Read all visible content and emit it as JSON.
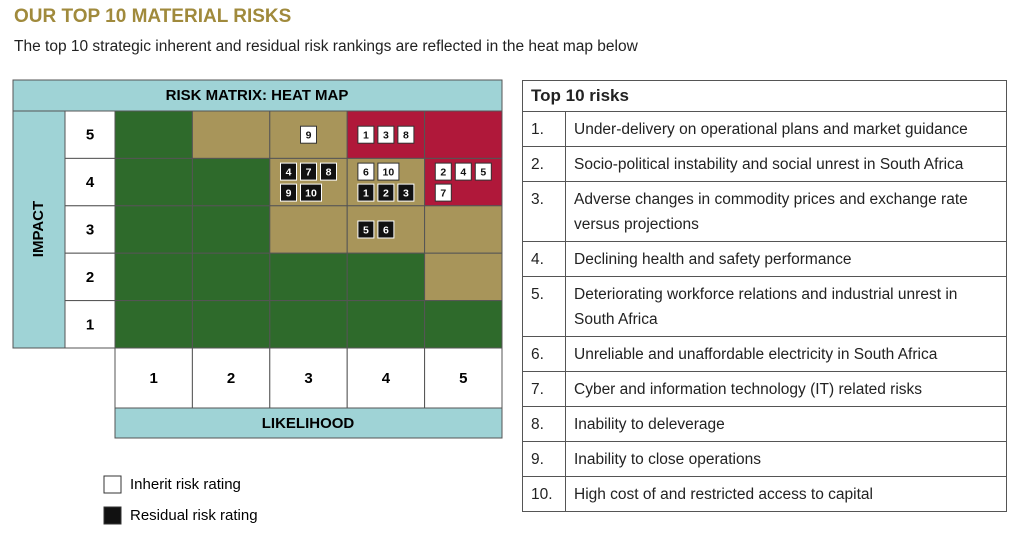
{
  "header": {
    "title": "OUR TOP 10 MATERIAL RISKS",
    "subtitle": "The top 10 strategic inherent and residual risk rankings are reflected in the heat map below"
  },
  "heat_map": {
    "title": "RISK MATRIX: HEAT MAP",
    "y_label": "IMPACT",
    "x_label": "LIKELIHOOD",
    "likelihood": [
      "1",
      "2",
      "3",
      "4",
      "5"
    ],
    "rows": [
      {
        "impact": "5",
        "cells": [
          {
            "color": "#2e6a2b",
            "inherent": [],
            "residual": []
          },
          {
            "color": "#a8955a",
            "inherent": [],
            "residual": []
          },
          {
            "color": "#a8955a",
            "inherent": [
              "9"
            ],
            "residual": []
          },
          {
            "color": "#b0183a",
            "inherent": [
              "1",
              "3",
              "8"
            ],
            "residual": []
          },
          {
            "color": "#b0183a",
            "inherent": [],
            "residual": []
          }
        ]
      },
      {
        "impact": "4",
        "cells": [
          {
            "color": "#2e6a2b",
            "inherent": [],
            "residual": []
          },
          {
            "color": "#2e6a2b",
            "inherent": [],
            "residual": []
          },
          {
            "color": "#a8955a",
            "inherent": [],
            "residual": [
              "4",
              "7",
              "8",
              "9",
              "10"
            ]
          },
          {
            "color": "#a8955a",
            "inherent": [
              "6",
              "10"
            ],
            "residual": [
              "1",
              "2",
              "3"
            ]
          },
          {
            "color": "#b0183a",
            "inherent": [
              "2",
              "4",
              "5",
              "7"
            ],
            "residual": []
          }
        ]
      },
      {
        "impact": "3",
        "cells": [
          {
            "color": "#2e6a2b",
            "inherent": [],
            "residual": []
          },
          {
            "color": "#2e6a2b",
            "inherent": [],
            "residual": []
          },
          {
            "color": "#a8955a",
            "inherent": [],
            "residual": []
          },
          {
            "color": "#a8955a",
            "inherent": [],
            "residual": [
              "5",
              "6"
            ]
          },
          {
            "color": "#a8955a",
            "inherent": [],
            "residual": []
          }
        ]
      },
      {
        "impact": "2",
        "cells": [
          {
            "color": "#2e6a2b",
            "inherent": [],
            "residual": []
          },
          {
            "color": "#2e6a2b",
            "inherent": [],
            "residual": []
          },
          {
            "color": "#2e6a2b",
            "inherent": [],
            "residual": []
          },
          {
            "color": "#2e6a2b",
            "inherent": [],
            "residual": []
          },
          {
            "color": "#a8955a",
            "inherent": [],
            "residual": []
          }
        ]
      },
      {
        "impact": "1",
        "cells": [
          {
            "color": "#2e6a2b",
            "inherent": [],
            "residual": []
          },
          {
            "color": "#2e6a2b",
            "inherent": [],
            "residual": []
          },
          {
            "color": "#2e6a2b",
            "inherent": [],
            "residual": []
          },
          {
            "color": "#2e6a2b",
            "inherent": [],
            "residual": []
          },
          {
            "color": "#2e6a2b",
            "inherent": [],
            "residual": []
          }
        ]
      }
    ],
    "legend": {
      "inherent": "Inherit risk rating",
      "residual": "Residual risk rating"
    }
  },
  "table": {
    "title": "Top 10 risks",
    "rows": [
      [
        "1.",
        "Under-delivery on operational plans and market guidance"
      ],
      [
        "2.",
        "Socio-political instability and social unrest in South Africa"
      ],
      [
        "3.",
        "Adverse changes in commodity prices and exchange rate versus projections"
      ],
      [
        "4.",
        "Declining health and safety performance"
      ],
      [
        "5.",
        "Deteriorating workforce relations and industrial unrest in South Africa"
      ],
      [
        "6.",
        "Unreliable and unaffordable electricity in South Africa"
      ],
      [
        "7.",
        "Cyber and information technology (IT) related risks"
      ],
      [
        "8.",
        "Inability to deleverage"
      ],
      [
        "9.",
        "Inability to close operations"
      ],
      [
        "10.",
        "High cost of and restricted access to capital"
      ]
    ]
  }
}
